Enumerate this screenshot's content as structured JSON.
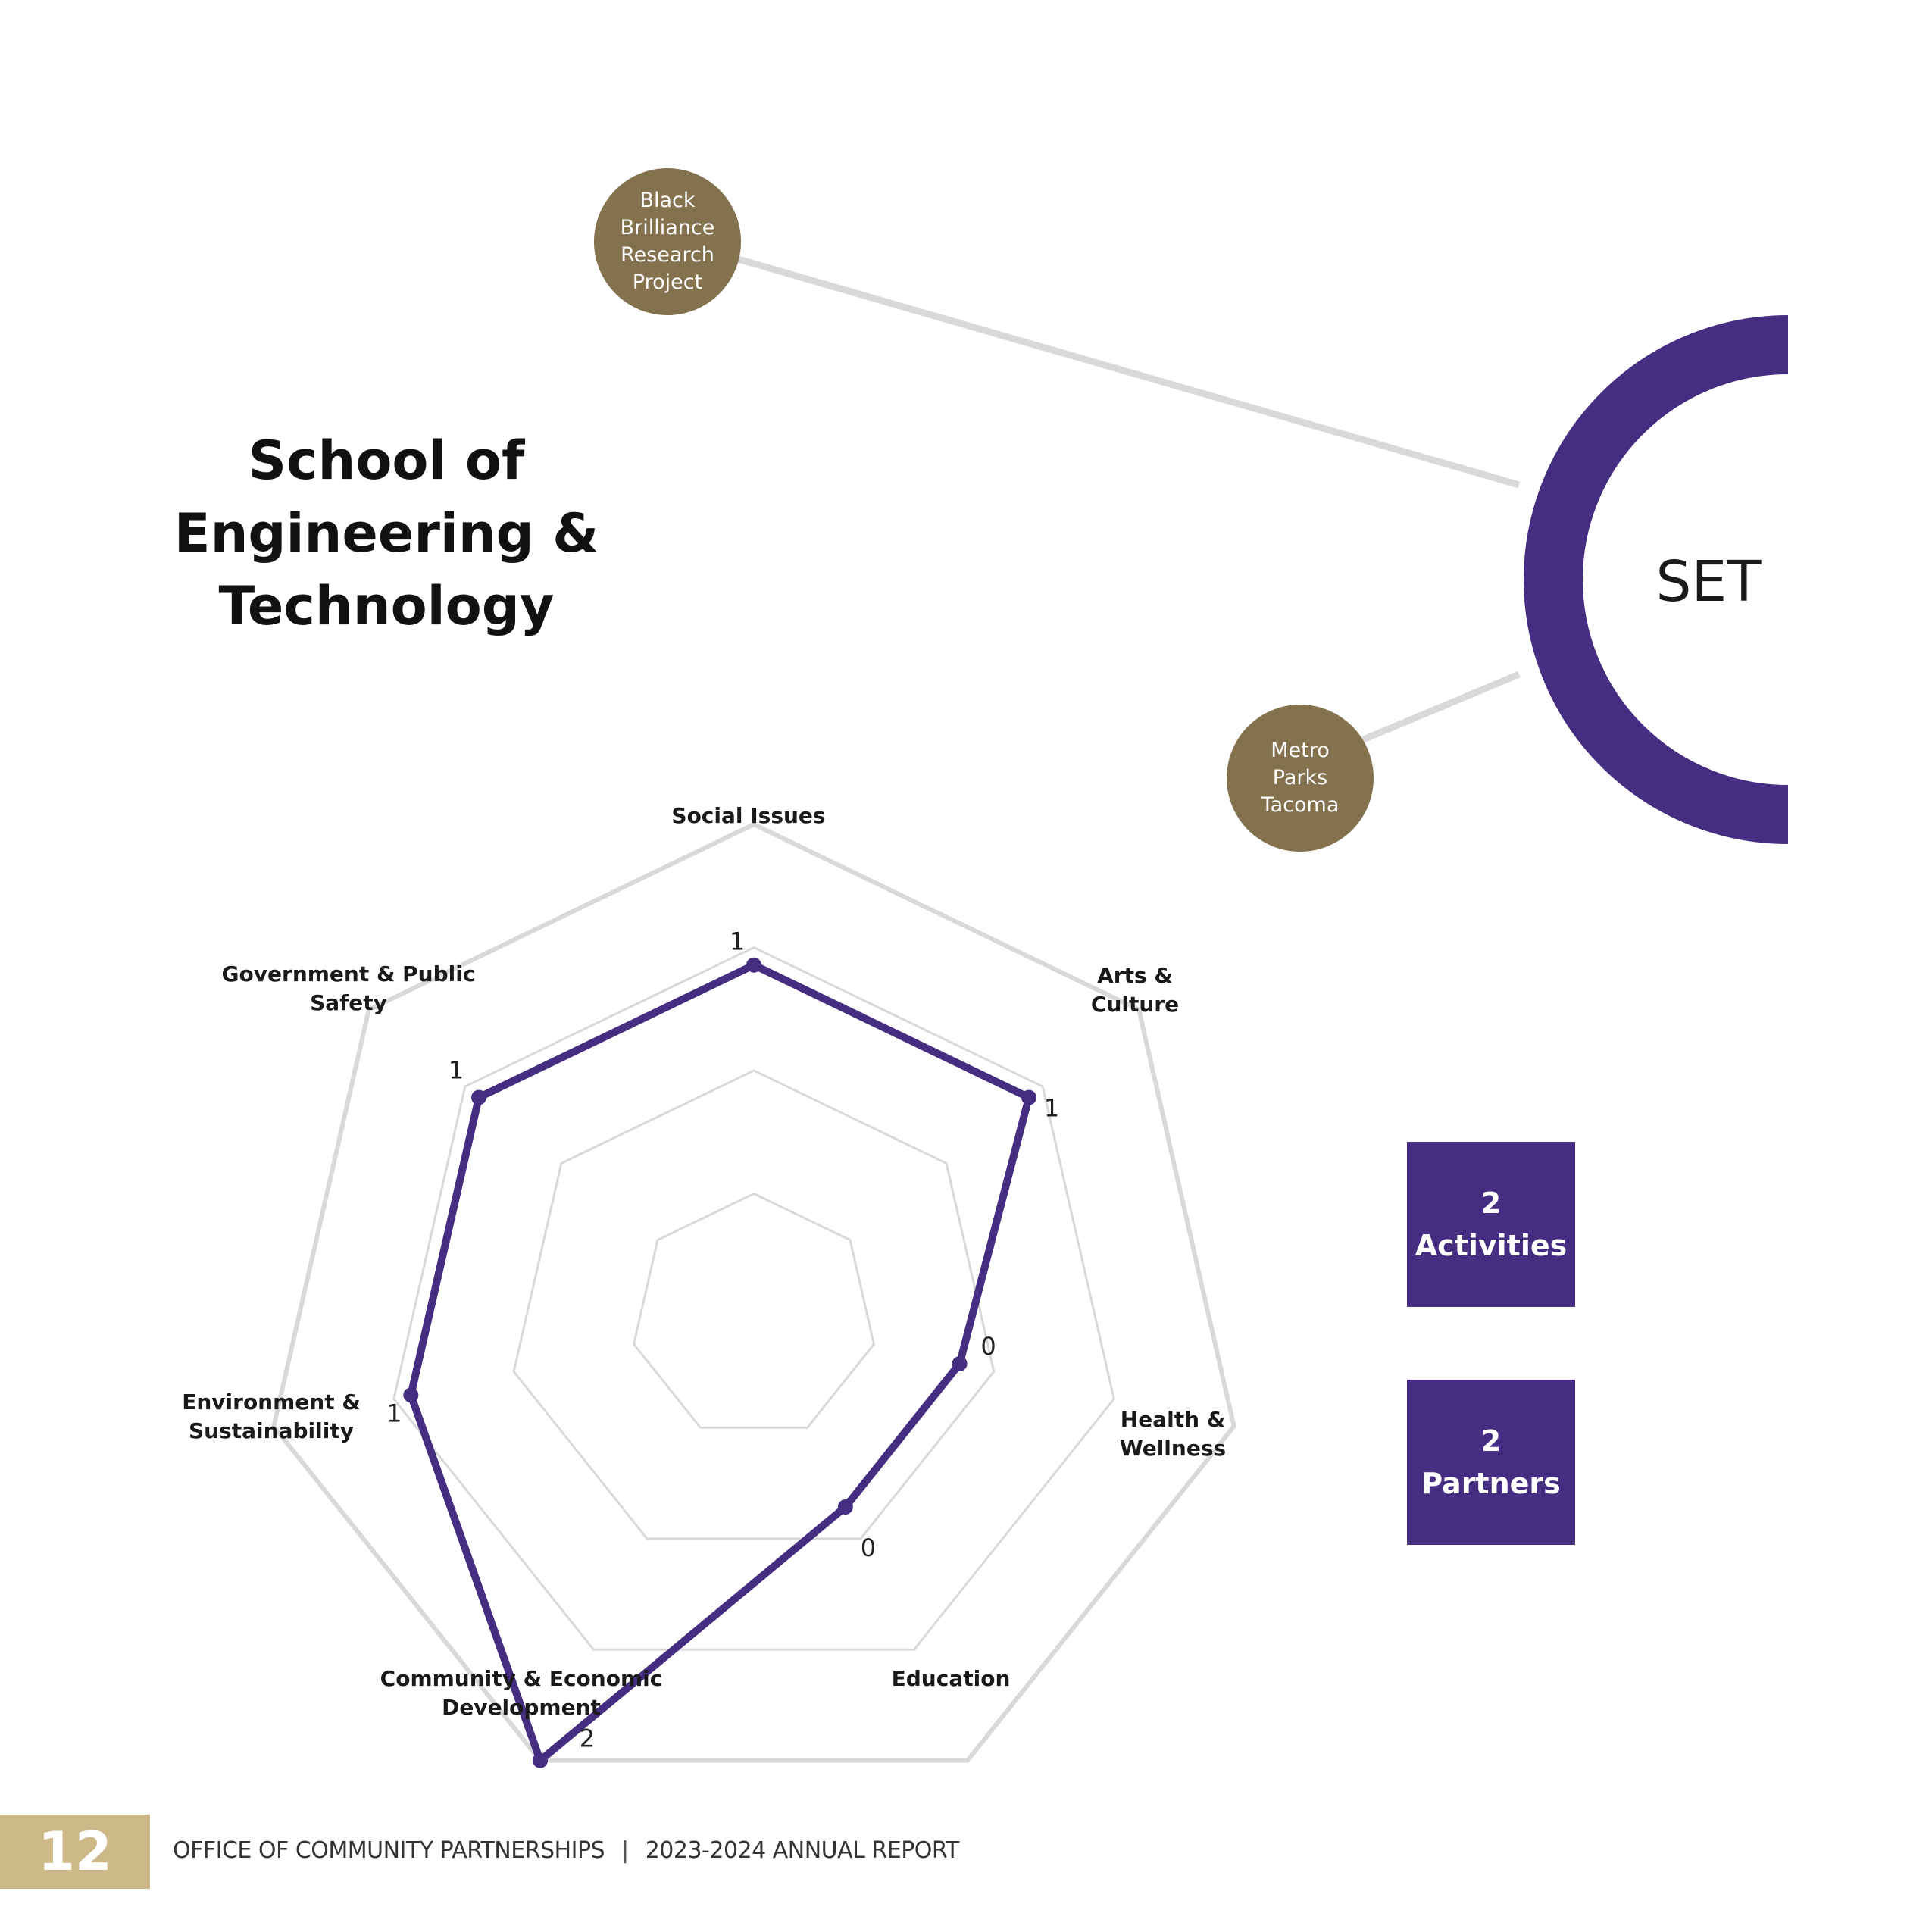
{
  "page": {
    "title_lines": [
      "School of",
      "Engineering &",
      "Technology"
    ],
    "center_label": "SET",
    "partner_nodes": [
      {
        "lines": [
          "Black",
          "Brilliance",
          "Research",
          "Project"
        ]
      },
      {
        "lines": [
          "Metro",
          "Parks",
          "Tacoma"
        ]
      }
    ],
    "stats": [
      {
        "number": "2",
        "label": "Activities"
      },
      {
        "number": "2",
        "label": "Partners"
      }
    ],
    "footer": {
      "page_number": "12",
      "office": "OFFICE OF COMMUNITY PARTNERSHIPS",
      "separator": "|",
      "report": "2023-2024 ANNUAL REPORT"
    }
  },
  "colors": {
    "purple": "#452d82",
    "bubble_brown": "#84724f",
    "footer_gold": "#cdb887",
    "grid_gray": "#d9d9d9"
  },
  "chart_data": {
    "type": "radar",
    "axes": [
      "Social Issues",
      "Arts & Culture",
      "Health & Wellness",
      "Education",
      "Community & Economic Development",
      "Environment & Sustainability",
      "Government & Public Safety"
    ],
    "axis_label_lines": [
      [
        "Social Issues"
      ],
      [
        "Arts &",
        "Culture"
      ],
      [
        "Health &",
        "Wellness"
      ],
      [
        "Education"
      ],
      [
        "Community & Economic",
        "Development"
      ],
      [
        "Environment &",
        "Sustainability"
      ],
      [
        "Government & Public",
        "Safety"
      ]
    ],
    "values": [
      1,
      1,
      0,
      0,
      2,
      1,
      1
    ],
    "data_labels": [
      "1",
      "1",
      "0",
      "0",
      "2",
      "1",
      "1"
    ],
    "range": [
      -1.5,
      2
    ],
    "grid_levels": 4,
    "grid": true
  }
}
